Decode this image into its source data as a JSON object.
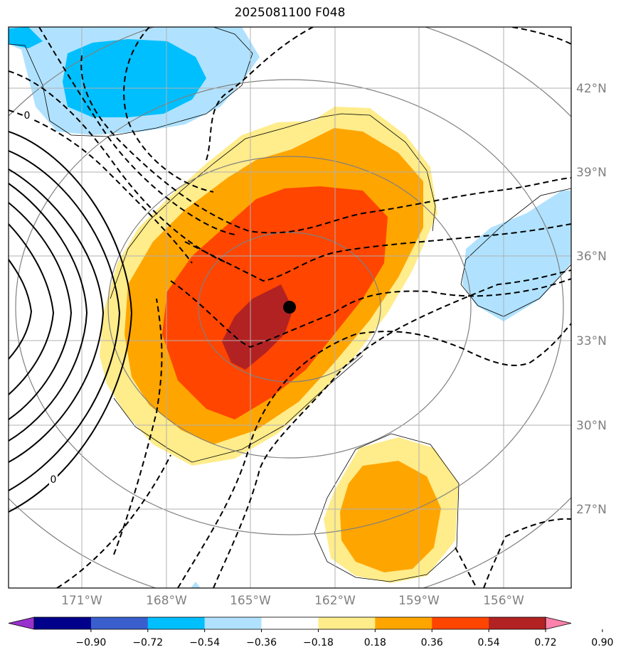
{
  "title": "2025081100 F048",
  "map": {
    "lat_ticks": [
      {
        "value": 42,
        "label": "42°N"
      },
      {
        "value": 39,
        "label": "39°N"
      },
      {
        "value": 36,
        "label": "36°N"
      },
      {
        "value": 33,
        "label": "33°N"
      },
      {
        "value": 30,
        "label": "30°N"
      },
      {
        "value": 27,
        "label": "27°N"
      }
    ],
    "lon_ticks": [
      {
        "value": -171,
        "label": "171°W"
      },
      {
        "value": -168,
        "label": "168°W"
      },
      {
        "value": -165,
        "label": "165°W"
      },
      {
        "value": -162,
        "label": "162°W"
      },
      {
        "value": -159,
        "label": "159°W"
      },
      {
        "value": -156,
        "label": "156°W"
      }
    ],
    "contour_labels": [
      "0",
      "0"
    ],
    "marker": {
      "lon": -163.6,
      "lat": 34.2
    }
  },
  "colorbar": {
    "levels": [
      "−0.90",
      "−0.72",
      "−0.54",
      "−0.36",
      "−0.18",
      "0.18",
      "0.36",
      "0.54",
      "0.72",
      "0.90"
    ],
    "colors": [
      "#9932CC",
      "#00008B",
      "#3A5FCD",
      "#00BFFF",
      "#B0E2FF",
      "#FFFFFF",
      "#FFEC8B",
      "#FFA500",
      "#FF4500",
      "#B22222",
      "#FF82AB"
    ]
  }
}
